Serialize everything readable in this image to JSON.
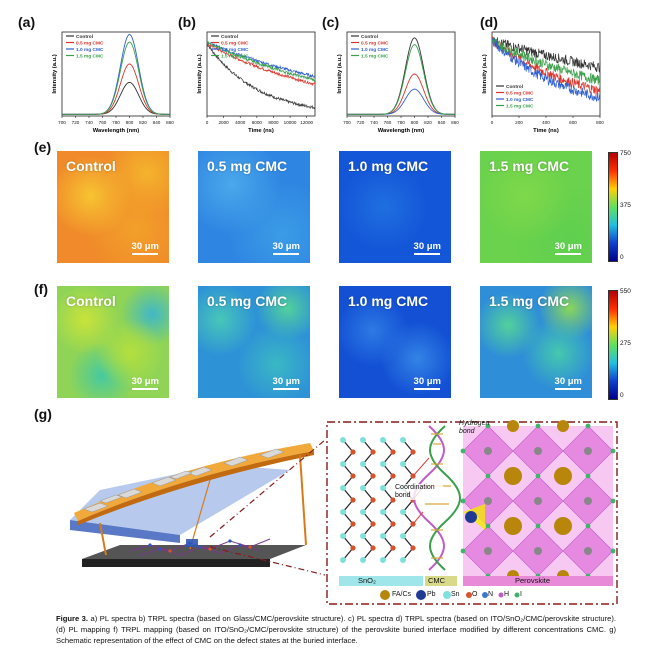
{
  "panel_labels": {
    "a": "(a)",
    "b": "(b)",
    "c": "(c)",
    "d": "(d)",
    "e": "(e)",
    "f": "(f)",
    "g": "(g)"
  },
  "colors": {
    "control": "#333333",
    "cmc05": "#d9332a",
    "cmc10": "#2f5fd0",
    "cmc15": "#3aa04a"
  },
  "legend": [
    "Control",
    "0.5 mg CMC",
    "1.0 mg CMC",
    "1.5 mg CMC"
  ],
  "chart_data": [
    {
      "type": "line",
      "panel": "a",
      "title": "",
      "xlabel": "Wavelength (nm)",
      "ylabel": "Intensity (a.u.)",
      "xlim": [
        700,
        860
      ],
      "xticks": [
        700,
        720,
        740,
        760,
        780,
        800,
        820,
        840,
        860
      ],
      "peak": 800,
      "width": 19,
      "series": [
        {
          "name": "Control",
          "peak_height": 0.38
        },
        {
          "name": "0.5 mg CMC",
          "peak_height": 0.6
        },
        {
          "name": "1.0 mg CMC",
          "peak_height": 0.95
        },
        {
          "name": "1.5 mg CMC",
          "peak_height": 0.86
        }
      ]
    },
    {
      "type": "line",
      "panel": "b",
      "title": "",
      "xlabel": "Time (ns)",
      "ylabel": "Intensity (a.u.)",
      "xlim": [
        0,
        13000
      ],
      "xticks": [
        0,
        2000,
        4000,
        6000,
        8000,
        10000,
        12000
      ],
      "series": [
        {
          "name": "Control",
          "start": 0.86,
          "end": 0.1
        },
        {
          "name": "0.5 mg CMC",
          "start": 0.86,
          "end": 0.38
        },
        {
          "name": "1.0 mg CMC",
          "start": 0.88,
          "end": 0.47
        },
        {
          "name": "1.5 mg CMC",
          "start": 0.88,
          "end": 0.43
        }
      ]
    },
    {
      "type": "line",
      "panel": "c",
      "title": "",
      "xlabel": "Wavelength (nm)",
      "ylabel": "Intensity (a.u.)",
      "xlim": [
        700,
        860
      ],
      "xticks": [
        700,
        720,
        740,
        760,
        780,
        800,
        820,
        840,
        860
      ],
      "peak": 800,
      "width": 19,
      "series": [
        {
          "name": "Control",
          "peak_height": 0.91
        },
        {
          "name": "0.5 mg CMC",
          "peak_height": 0.48
        },
        {
          "name": "1.0 mg CMC",
          "peak_height": 0.3
        },
        {
          "name": "1.5 mg CMC",
          "peak_height": 0.83
        }
      ]
    },
    {
      "type": "line",
      "panel": "d",
      "title": "",
      "xlabel": "Time (ns)",
      "ylabel": "Intensity (a.u.)",
      "xlim": [
        0,
        800
      ],
      "xticks": [
        0,
        200,
        400,
        600,
        800
      ],
      "series": [
        {
          "name": "Control",
          "start": 0.9,
          "end": 0.58
        },
        {
          "name": "0.5 mg CMC",
          "start": 0.9,
          "end": 0.3
        },
        {
          "name": "1.0 mg CMC",
          "start": 0.9,
          "end": 0.22
        },
        {
          "name": "1.5 mg CMC",
          "start": 0.9,
          "end": 0.42
        }
      ]
    }
  ],
  "maps_e": {
    "labels": [
      "Control",
      "0.5 mg CMC",
      "1.0 mg CMC",
      "1.5 mg CMC"
    ],
    "scale": "30 μm",
    "colorbar": {
      "max": "750",
      "mid": "375",
      "min": "0"
    }
  },
  "maps_f": {
    "labels": [
      "Control",
      "0.5 mg CMC",
      "1.0 mg CMC",
      "1.5 mg CMC"
    ],
    "scale": "30 μm",
    "colorbar": {
      "max": "550",
      "mid": "275",
      "min": "0"
    }
  },
  "schematic": {
    "hydrogen_bond": "Hydrogen bond",
    "coordination_bond": "Coordination bond",
    "layers": {
      "sno2": "SnO₂",
      "cmc": "CMC",
      "perovskite": "Perovskite"
    },
    "legend": [
      {
        "label": "FA/Cs",
        "color": "#b8860b"
      },
      {
        "label": "Pb",
        "color": "#1f3a93"
      },
      {
        "label": "Sn",
        "color": "#7fe0dc"
      },
      {
        "label": "O",
        "color": "#d9532a"
      },
      {
        "label": "N",
        "color": "#3a78c9"
      },
      {
        "label": "H",
        "color": "#c05ac9"
      },
      {
        "label": "I",
        "color": "#3fb46a"
      }
    ]
  },
  "caption": {
    "lead": "Figure 3.",
    "text": " a) PL spectra b) TRPL spectra (based on Glass/CMC/perovskite structure). c) PL spectra d) TRPL spectra (based on ITO/SnO₂/CMC/perovskite structure). (d) PL mapping f) TRPL mapping (based on ITO/SnO₂/CMC/perovskite structure) of the perovskite buried interface modified by different concentrations CMC. g) Schematic representation of the effect of CMC on the defect states at the buried interface."
  }
}
